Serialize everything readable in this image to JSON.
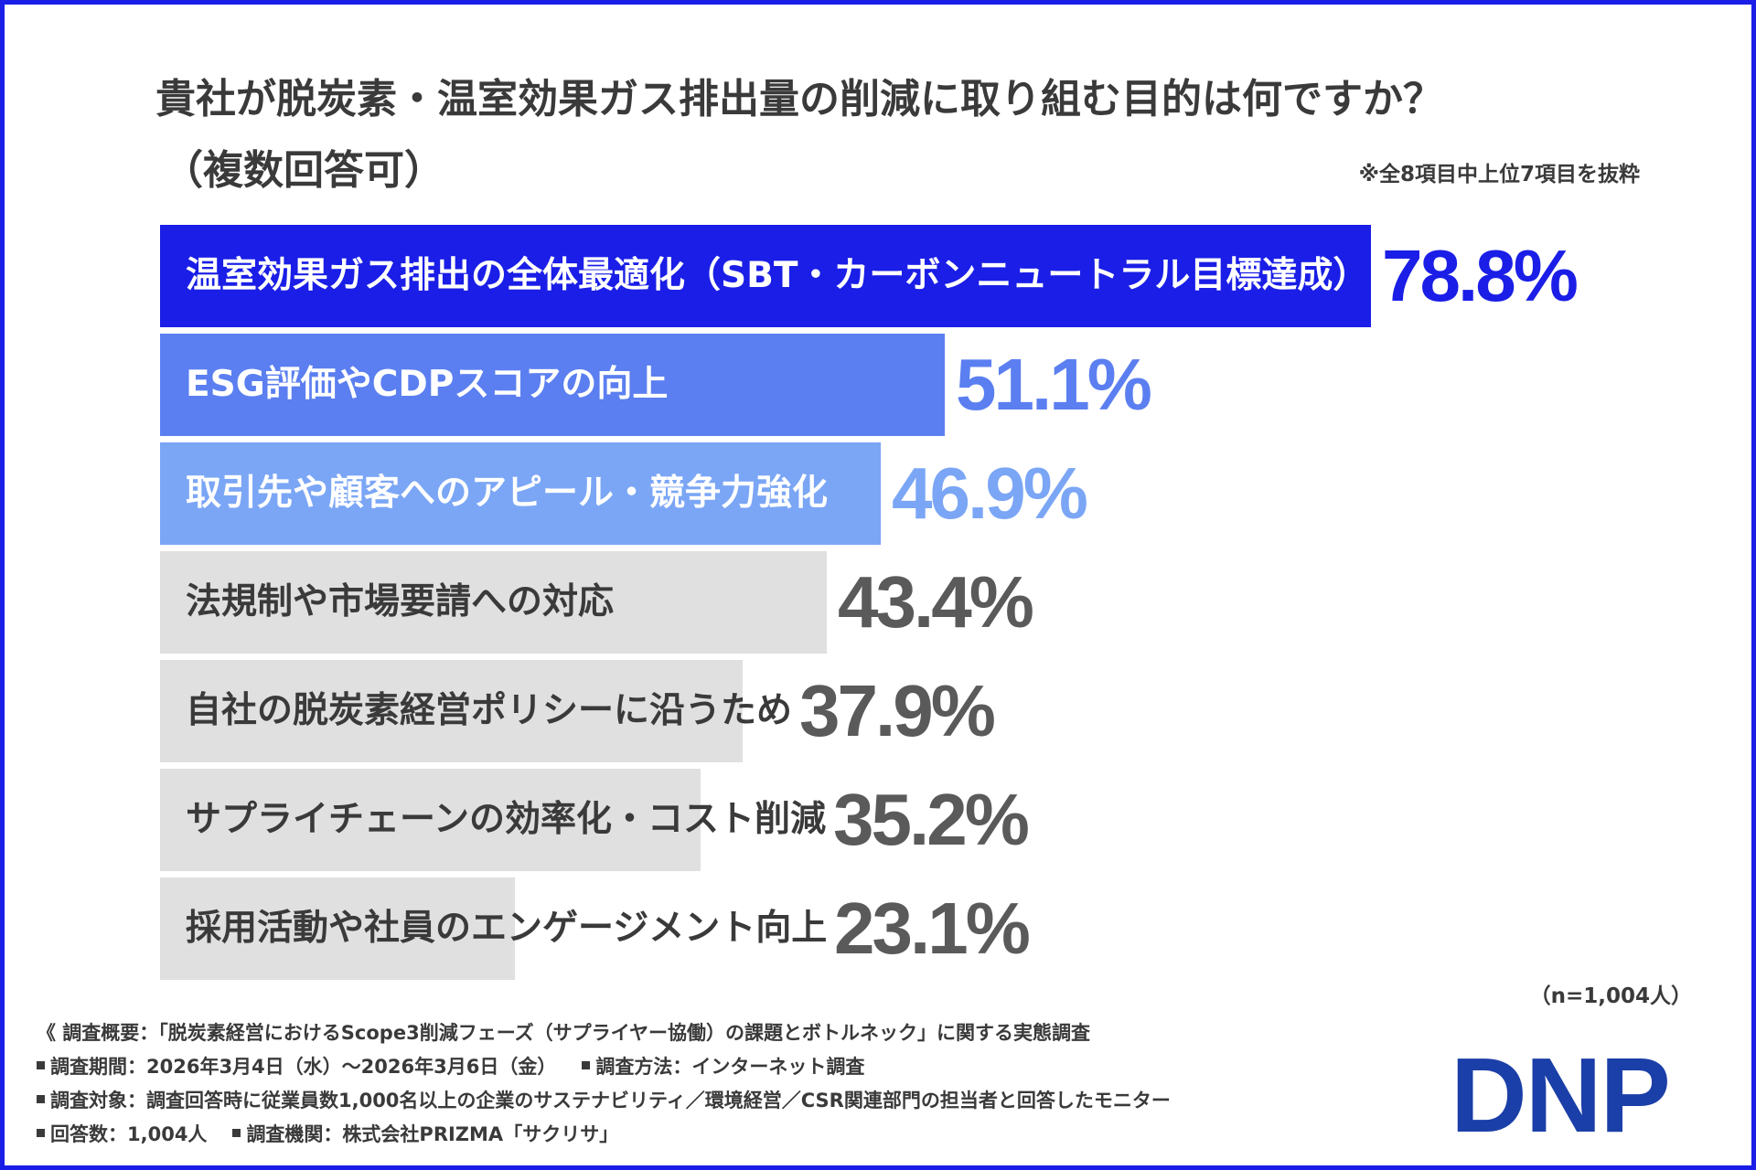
{
  "title": {
    "line1": "貴社が脱炭素・温室効果ガス排出量の削減に取り組む目的は何ですか？",
    "line2": "（複数回答可）"
  },
  "note": "※全8項目中上位7項目を抜粋",
  "chart_data": {
    "type": "bar",
    "orientation": "horizontal",
    "unit": "%",
    "xlim": [
      0,
      100
    ],
    "categories": [
      "温室効果ガス排出の全体最適化（SBT・カーボンニュートラル目標達成）",
      "ESG評価やCDPスコアの向上",
      "取引先や顧客へのアピール・競争力強化",
      "法規制や市場要請への対応",
      "自社の脱炭素経営ポリシーに沿うため",
      "サプライチェーンの効率化・コスト削減",
      "採用活動や社員のエンゲージメント向上"
    ],
    "values": [
      78.8,
      51.1,
      46.9,
      43.4,
      37.9,
      35.2,
      23.1
    ],
    "value_labels": [
      "78.8%",
      "51.1%",
      "46.9%",
      "43.4%",
      "37.9%",
      "35.2%",
      "23.1%"
    ],
    "bar_colors": [
      "#1a1ee6",
      "#5b7ff0",
      "#7ba6f5",
      "#e0e0e0",
      "#e0e0e0",
      "#e0e0e0",
      "#e0e0e0"
    ],
    "label_colors": [
      "#ffffff",
      "#ffffff",
      "#ffffff",
      "#3a3a3a",
      "#3a3a3a",
      "#3a3a3a",
      "#3a3a3a"
    ],
    "value_colors": [
      "#1a1ee6",
      "#5b7ff0",
      "#7ba6f5",
      "#5a5a5a",
      "#5a5a5a",
      "#5a5a5a",
      "#5a5a5a"
    ]
  },
  "n_note": "（n=1,004人）",
  "survey": {
    "overview": "《 調査概要：「脱炭素経営におけるScope3削減フェーズ（サプライヤー協働）の課題とボトルネック」に関する実態調査",
    "period": "調査期間：2026年3月4日（水）～2026年3月6日（金）",
    "method": "調査方法：インターネット調査",
    "target": "調査対象：調査回答時に従業員数1,000名以上の企業のサステナビリティ／環境経営／CSR関連部門の担当者と回答したモニター",
    "responses": "回答数：1,004人",
    "organization": "調査機関：株式会社PRIZMA「サクリサ」"
  },
  "logo": "DNP",
  "colors": {
    "frame": "#1a1ee6",
    "logo": "#1b3fa8",
    "text": "#3a3a3a"
  }
}
